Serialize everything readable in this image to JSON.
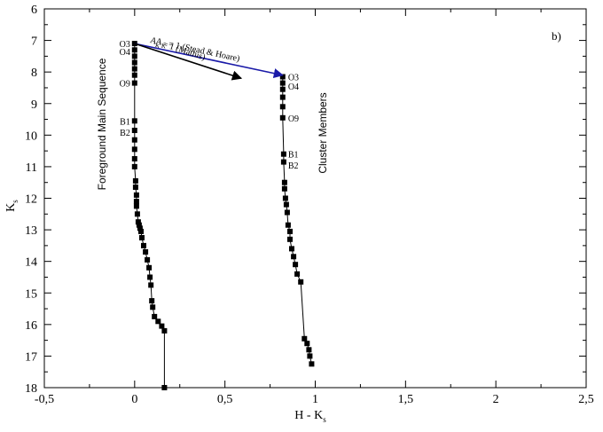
{
  "chart_data": {
    "type": "scatter",
    "panel_label": "b)",
    "xlabel": "H - K",
    "xlabel_sub": "s",
    "ylabel": "K",
    "ylabel_sub": "s",
    "xlim": [
      -0.5,
      2.5
    ],
    "ylim": [
      18,
      6
    ],
    "x_ticks": [
      -0.5,
      0,
      0.5,
      1,
      1.5,
      2,
      2.5
    ],
    "x_tick_labels": [
      "-0,5",
      "0",
      "0,5",
      "1",
      "1,5",
      "2",
      "2,5"
    ],
    "y_ticks": [
      6,
      7,
      8,
      9,
      10,
      11,
      12,
      13,
      14,
      15,
      16,
      17,
      18
    ],
    "y_tick_labels": [
      "6",
      "7",
      "8",
      "9",
      "10",
      "11",
      "12",
      "13",
      "14",
      "15",
      "16",
      "17",
      "18"
    ],
    "grid": false,
    "series": [
      {
        "name": "Foreground Main Sequence",
        "marker": "square",
        "x": [
          0,
          0,
          0,
          0,
          0,
          0,
          0,
          0,
          0,
          0,
          0,
          0,
          0,
          0.005,
          0.005,
          0.01,
          0.01,
          0.01,
          0.015,
          0.02,
          0.025,
          0.03,
          0.035,
          0.04,
          0.05,
          0.06,
          0.07,
          0.08,
          0.085,
          0.09,
          0.095,
          0.1,
          0.11,
          0.13,
          0.15,
          0.165,
          0.165
        ],
        "y": [
          7.1,
          7.3,
          7.5,
          7.7,
          7.9,
          8.1,
          8.35,
          9.55,
          9.85,
          10.15,
          10.45,
          10.75,
          11.0,
          11.45,
          11.65,
          11.9,
          12.1,
          12.25,
          12.5,
          12.75,
          12.85,
          12.95,
          13.05,
          13.25,
          13.5,
          13.7,
          13.95,
          14.2,
          14.5,
          14.75,
          15.25,
          15.45,
          15.75,
          15.9,
          16.05,
          16.2,
          18.0
        ]
      },
      {
        "name": "Cluster Members",
        "marker": "square",
        "x": [
          0.82,
          0.82,
          0.82,
          0.82,
          0.82,
          0.82,
          0.825,
          0.825,
          0.83,
          0.83,
          0.835,
          0.84,
          0.845,
          0.85,
          0.86,
          0.86,
          0.87,
          0.88,
          0.89,
          0.9,
          0.92,
          0.94,
          0.955,
          0.965,
          0.97,
          0.98
        ],
        "y": [
          8.15,
          8.35,
          8.55,
          8.8,
          9.1,
          9.45,
          10.6,
          10.85,
          11.5,
          11.7,
          12.0,
          12.2,
          12.45,
          12.85,
          13.05,
          13.3,
          13.6,
          13.85,
          14.1,
          14.4,
          14.65,
          16.45,
          16.6,
          16.8,
          17.0,
          17.25
        ]
      }
    ],
    "reddening_vectors": [
      {
        "label": "A",
        "label_sub": "K",
        "label_rest": " = 1",
        "source": "(Stead & Hoare)",
        "color": "#1a1aa8",
        "x0": 0,
        "y0": 7.1,
        "x1": 0.82,
        "y1": 8.1
      },
      {
        "label": "A",
        "label_sub": "K",
        "label_rest": " = 1",
        "source": "(Mathis)",
        "color": "#000000",
        "x0": 0,
        "y0": 7.1,
        "x1": 0.59,
        "y1": 8.2
      }
    ],
    "spectral_labels": {
      "foreground": [
        {
          "text": "O3",
          "y": 7.1
        },
        {
          "text": "O4",
          "y": 7.35
        },
        {
          "text": "O9",
          "y": 8.35
        },
        {
          "text": "B1",
          "y": 9.55
        },
        {
          "text": "B2",
          "y": 9.9
        }
      ],
      "cluster": [
        {
          "text": "O3",
          "y": 8.15
        },
        {
          "text": "O4",
          "y": 8.45
        },
        {
          "text": "O9",
          "y": 9.45
        },
        {
          "text": "B1",
          "y": 10.6
        },
        {
          "text": "B2",
          "y": 10.95
        }
      ]
    },
    "annotations": {
      "foreground_label": "Foreground Main Sequence",
      "cluster_label": "Cluster Members"
    }
  }
}
